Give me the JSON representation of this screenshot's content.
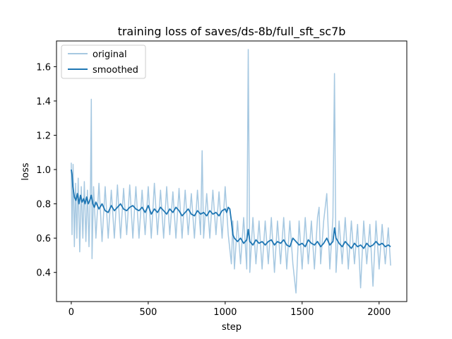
{
  "chart_data": {
    "type": "line",
    "title": "training loss of saves/ds-8b/full_sft_sc7b",
    "xlabel": "step",
    "ylabel": "loss",
    "xlim": [
      -96,
      2180
    ],
    "ylim": [
      0.23,
      1.75
    ],
    "x_ticks": [
      0,
      500,
      1000,
      1500,
      2000
    ],
    "y_ticks": [
      0.4,
      0.6,
      0.8,
      1.0,
      1.2,
      1.4,
      1.6
    ],
    "y_tick_labels": [
      "0.4",
      "0.6",
      "0.8",
      "1.0",
      "1.2",
      "1.4",
      "1.6"
    ],
    "legend_position": "top-left",
    "series": [
      {
        "name": "original",
        "color": "#a6c8e1",
        "x": [
          0,
          5,
          12,
          20,
          28,
          36,
          45,
          55,
          65,
          75,
          85,
          95,
          105,
          115,
          125,
          130,
          135,
          145,
          160,
          180,
          200,
          220,
          240,
          260,
          280,
          300,
          320,
          340,
          360,
          380,
          400,
          420,
          440,
          460,
          480,
          500,
          520,
          540,
          560,
          580,
          600,
          620,
          640,
          660,
          680,
          700,
          720,
          740,
          760,
          780,
          800,
          820,
          840,
          850,
          860,
          880,
          900,
          920,
          940,
          960,
          980,
          1000,
          1020,
          1040,
          1050,
          1060,
          1080,
          1100,
          1120,
          1140,
          1150,
          1160,
          1180,
          1200,
          1220,
          1240,
          1260,
          1280,
          1300,
          1320,
          1340,
          1360,
          1380,
          1400,
          1420,
          1440,
          1460,
          1480,
          1500,
          1520,
          1540,
          1560,
          1580,
          1600,
          1610,
          1620,
          1640,
          1660,
          1680,
          1700,
          1710,
          1720,
          1740,
          1760,
          1780,
          1800,
          1820,
          1840,
          1860,
          1880,
          1900,
          1920,
          1940,
          1960,
          1980,
          2000,
          2020,
          2040,
          2060,
          2075
        ],
        "values": [
          1.04,
          0.62,
          1.03,
          0.55,
          0.92,
          0.6,
          0.95,
          0.52,
          0.9,
          0.6,
          0.93,
          0.58,
          0.88,
          0.55,
          0.92,
          1.41,
          0.48,
          0.9,
          0.6,
          0.92,
          0.58,
          0.9,
          0.6,
          0.88,
          0.6,
          0.91,
          0.6,
          0.89,
          0.62,
          0.91,
          0.6,
          0.9,
          0.6,
          0.88,
          0.62,
          0.9,
          0.6,
          0.92,
          0.62,
          0.88,
          0.6,
          0.9,
          0.62,
          0.87,
          0.6,
          0.89,
          0.6,
          0.88,
          0.62,
          0.86,
          0.6,
          0.88,
          0.62,
          1.11,
          0.6,
          0.86,
          0.6,
          0.88,
          0.62,
          0.87,
          0.6,
          0.9,
          0.62,
          0.45,
          0.7,
          0.42,
          0.7,
          0.45,
          0.72,
          0.42,
          1.7,
          0.4,
          0.72,
          0.45,
          0.7,
          0.42,
          0.7,
          0.45,
          0.72,
          0.4,
          0.7,
          0.45,
          0.72,
          0.42,
          0.7,
          0.45,
          0.28,
          0.7,
          0.42,
          0.72,
          0.45,
          0.7,
          0.42,
          0.72,
          0.78,
          0.45,
          0.7,
          0.86,
          0.42,
          0.72,
          1.56,
          0.4,
          0.7,
          0.45,
          0.72,
          0.42,
          0.7,
          0.45,
          0.68,
          0.31,
          0.7,
          0.45,
          0.68,
          0.32,
          0.7,
          0.42,
          0.68,
          0.45,
          0.66,
          0.44
        ]
      },
      {
        "name": "smoothed",
        "color": "#1f77b4",
        "x": [
          0,
          5,
          10,
          20,
          30,
          40,
          50,
          60,
          70,
          80,
          90,
          100,
          110,
          120,
          130,
          140,
          150,
          160,
          180,
          200,
          220,
          240,
          260,
          280,
          300,
          320,
          340,
          360,
          380,
          400,
          420,
          440,
          460,
          480,
          500,
          520,
          540,
          560,
          580,
          600,
          620,
          640,
          660,
          680,
          700,
          720,
          740,
          760,
          780,
          800,
          820,
          840,
          860,
          880,
          900,
          920,
          940,
          960,
          980,
          1000,
          1010,
          1020,
          1030,
          1040,
          1050,
          1060,
          1080,
          1100,
          1120,
          1140,
          1150,
          1160,
          1180,
          1200,
          1220,
          1240,
          1260,
          1280,
          1300,
          1320,
          1340,
          1360,
          1380,
          1400,
          1420,
          1440,
          1460,
          1480,
          1500,
          1520,
          1540,
          1560,
          1580,
          1600,
          1620,
          1640,
          1660,
          1680,
          1700,
          1710,
          1720,
          1740,
          1760,
          1780,
          1800,
          1820,
          1840,
          1860,
          1880,
          1900,
          1920,
          1940,
          1960,
          1980,
          2000,
          2020,
          2040,
          2060,
          2075
        ],
        "values": [
          1.0,
          0.97,
          0.9,
          0.84,
          0.82,
          0.86,
          0.8,
          0.85,
          0.81,
          0.83,
          0.8,
          0.84,
          0.8,
          0.82,
          0.85,
          0.8,
          0.78,
          0.81,
          0.77,
          0.8,
          0.76,
          0.75,
          0.79,
          0.76,
          0.78,
          0.8,
          0.77,
          0.76,
          0.78,
          0.79,
          0.77,
          0.76,
          0.78,
          0.75,
          0.79,
          0.74,
          0.77,
          0.75,
          0.78,
          0.76,
          0.74,
          0.77,
          0.75,
          0.78,
          0.76,
          0.73,
          0.75,
          0.77,
          0.74,
          0.73,
          0.76,
          0.74,
          0.75,
          0.73,
          0.76,
          0.74,
          0.75,
          0.73,
          0.76,
          0.77,
          0.75,
          0.78,
          0.77,
          0.7,
          0.62,
          0.6,
          0.58,
          0.6,
          0.57,
          0.59,
          0.65,
          0.58,
          0.56,
          0.59,
          0.57,
          0.58,
          0.56,
          0.58,
          0.59,
          0.56,
          0.58,
          0.57,
          0.59,
          0.56,
          0.55,
          0.6,
          0.58,
          0.56,
          0.57,
          0.55,
          0.59,
          0.57,
          0.56,
          0.58,
          0.55,
          0.57,
          0.6,
          0.56,
          0.58,
          0.66,
          0.6,
          0.57,
          0.55,
          0.58,
          0.56,
          0.54,
          0.57,
          0.55,
          0.56,
          0.54,
          0.57,
          0.55,
          0.56,
          0.58,
          0.56,
          0.57,
          0.55,
          0.56,
          0.55
        ]
      }
    ]
  }
}
